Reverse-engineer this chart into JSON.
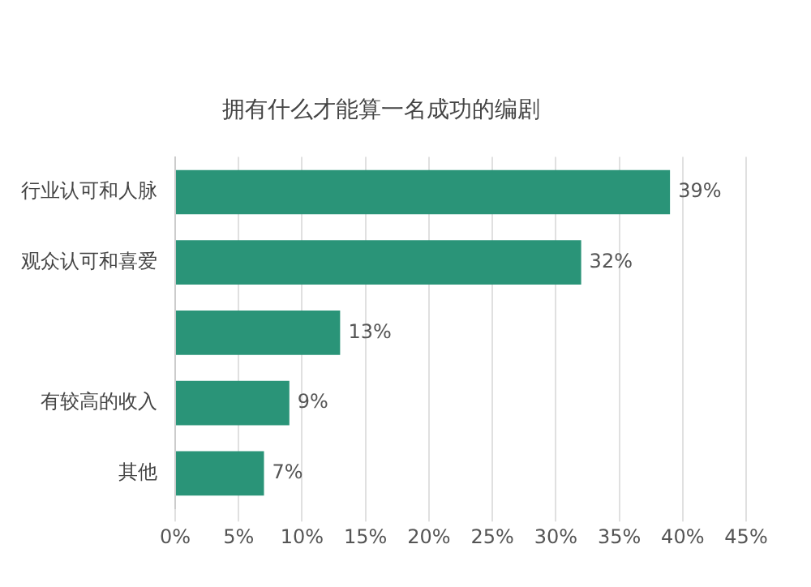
{
  "chart_data": {
    "type": "bar",
    "orientation": "horizontal",
    "title": "拥有什么才能算一名成功的编剧",
    "categories": [
      "行业认可和人脉",
      "观众认可和喜爱",
      null,
      "有较高的收入",
      "其他"
    ],
    "values": [
      39,
      32,
      13,
      9,
      7
    ],
    "color": "#2a9478",
    "value_labels": [
      "39%",
      "32%",
      "13%",
      "9%",
      "7%"
    ],
    "xlim": [
      0,
      45
    ],
    "xticks": [
      {
        "value": 0,
        "label": "0%"
      },
      {
        "value": 5,
        "label": "5%"
      },
      {
        "value": 10,
        "label": "10%"
      },
      {
        "value": 15,
        "label": "15%"
      },
      {
        "value": 20,
        "label": "20%"
      },
      {
        "value": 25,
        "label": "25%"
      },
      {
        "value": 30,
        "label": "30%"
      },
      {
        "value": 35,
        "label": "35%"
      },
      {
        "value": 40,
        "label": "40%"
      },
      {
        "value": 45,
        "label": "45%"
      }
    ],
    "grid": "x"
  }
}
